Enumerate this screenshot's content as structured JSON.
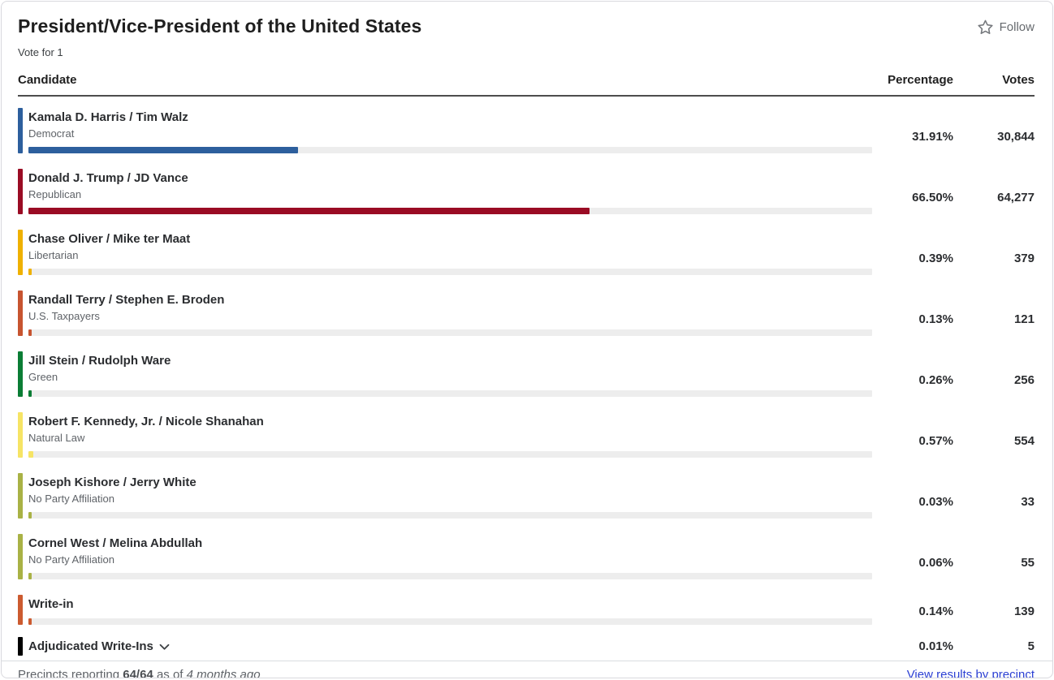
{
  "card": {
    "title": "President/Vice-President of the United States",
    "subtitle": "Vote for 1",
    "follow_label": "Follow"
  },
  "columns": {
    "candidate": "Candidate",
    "percentage": "Percentage",
    "votes": "Votes"
  },
  "colors": {
    "track": "#ededed",
    "header_rule": "#4d4d4d",
    "link": "#2b3fd3"
  },
  "candidates": [
    {
      "name": "Kamala D. Harris / Tim Walz",
      "party": "Democrat",
      "color": "#2d5f9d",
      "pct": 31.91,
      "percentage": "31.91%",
      "votes": "30,844",
      "has_bar": true
    },
    {
      "name": "Donald J. Trump / JD Vance",
      "party": "Republican",
      "color": "#9a0c24",
      "pct": 66.5,
      "percentage": "66.50%",
      "votes": "64,277",
      "has_bar": true
    },
    {
      "name": "Chase Oliver / Mike ter Maat",
      "party": "Libertarian",
      "color": "#efb100",
      "pct": 0.39,
      "percentage": "0.39%",
      "votes": "379",
      "has_bar": true
    },
    {
      "name": "Randall Terry / Stephen E. Broden",
      "party": "U.S. Taxpayers",
      "color": "#c75430",
      "pct": 0.13,
      "percentage": "0.13%",
      "votes": "121",
      "has_bar": true
    },
    {
      "name": "Jill Stein / Rudolph Ware",
      "party": "Green",
      "color": "#0b7d35",
      "pct": 0.26,
      "percentage": "0.26%",
      "votes": "256",
      "has_bar": true
    },
    {
      "name": "Robert F. Kennedy, Jr. / Nicole Shanahan",
      "party": "Natural Law",
      "color": "#f6e465",
      "pct": 0.57,
      "percentage": "0.57%",
      "votes": "554",
      "has_bar": true
    },
    {
      "name": "Joseph Kishore / Jerry White",
      "party": "No Party Affiliation",
      "color": "#a9b245",
      "pct": 0.03,
      "percentage": "0.03%",
      "votes": "33",
      "has_bar": true
    },
    {
      "name": "Cornel West / Melina Abdullah",
      "party": "No Party Affiliation",
      "color": "#a9b245",
      "pct": 0.06,
      "percentage": "0.06%",
      "votes": "55",
      "has_bar": true
    },
    {
      "name": "Write-in",
      "party": "",
      "color": "#cc5b30",
      "pct": 0.14,
      "percentage": "0.14%",
      "votes": "139",
      "has_bar": true
    },
    {
      "name": "Adjudicated Write-Ins",
      "party": "",
      "color": "#000000",
      "pct": 0.01,
      "percentage": "0.01%",
      "votes": "5",
      "has_bar": false,
      "expandable": true
    }
  ],
  "footer": {
    "precincts_prefix": "Precincts reporting ",
    "precincts_value": "64/64",
    "precincts_middle": " as of ",
    "precincts_time": "4 months ago",
    "link_label": "View results by precinct"
  }
}
